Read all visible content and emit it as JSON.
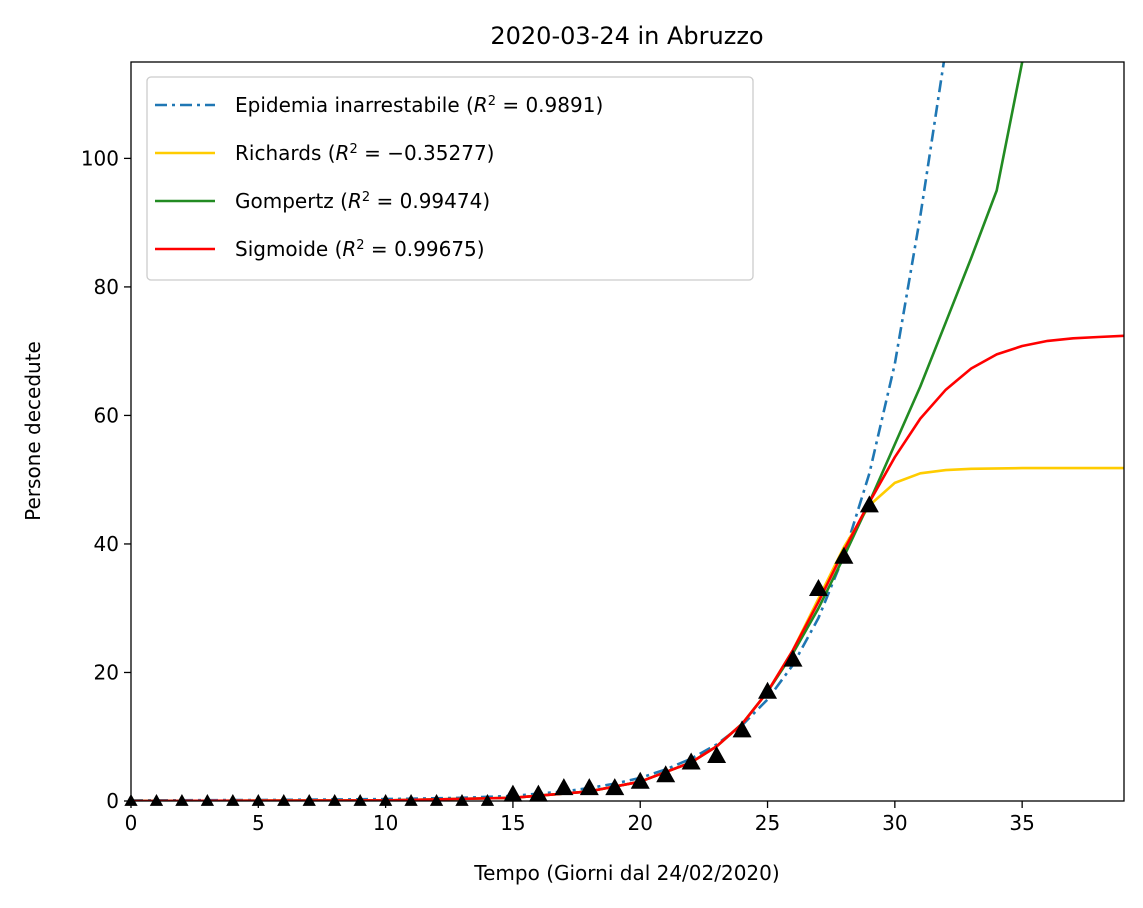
{
  "chart_data": {
    "type": "line",
    "title": "2020-03-24 in Abruzzo",
    "xlabel": "Tempo (Giorni dal 24/02/2020)",
    "ylabel": "Persone decedute",
    "xlim": [
      0,
      39
    ],
    "ylim": [
      0,
      115
    ],
    "xticks": [
      0,
      5,
      10,
      15,
      20,
      25,
      30,
      35
    ],
    "yticks": [
      0,
      20,
      40,
      60,
      80,
      100
    ],
    "grid": false,
    "legend_position": "top-left",
    "series": [
      {
        "name": "Epidemia inarrestabile (R² = 0.9891)",
        "legend_prefix": "Epidemia inarrestabile (",
        "legend_r2": "0.9891",
        "legend_suffix": ")",
        "color": "#1f77b4",
        "style": "dashdot",
        "x": [
          0,
          5,
          10,
          13,
          15,
          17,
          18,
          19,
          20,
          21,
          22,
          23,
          24,
          25,
          26,
          27,
          28,
          29,
          30,
          31,
          32
        ],
        "y": [
          0.1,
          0.15,
          0.3,
          0.5,
          0.8,
          1.5,
          2.0,
          2.7,
          3.6,
          4.9,
          6.6,
          8.8,
          11.8,
          15.8,
          21.2,
          28.5,
          38.2,
          51.0,
          68.0,
          91.0,
          117.0
        ]
      },
      {
        "name": "Richards (R² = −0.35277)",
        "legend_prefix": "Richards (",
        "legend_r2": "−0.35277",
        "legend_suffix": ")",
        "color": "#ffcc00",
        "style": "solid",
        "x": [
          0,
          10,
          15,
          18,
          20,
          22,
          23,
          24,
          25,
          26,
          27,
          28,
          29,
          30,
          31,
          32,
          33,
          35,
          39
        ],
        "y": [
          0,
          0.1,
          0.5,
          1.5,
          3.0,
          6.0,
          8.5,
          12.0,
          17.0,
          23.5,
          31.5,
          39.5,
          46.0,
          49.5,
          51.0,
          51.5,
          51.7,
          51.8,
          51.8
        ]
      },
      {
        "name": "Gompertz (R² = 0.99474)",
        "legend_prefix": "Gompertz (",
        "legend_r2": "0.99474",
        "legend_suffix": ")",
        "color": "#228b22",
        "style": "solid",
        "x": [
          0,
          10,
          15,
          18,
          20,
          22,
          23,
          24,
          25,
          26,
          27,
          28,
          29,
          30,
          31,
          32,
          33,
          34,
          35
        ],
        "y": [
          0,
          0.1,
          0.5,
          1.5,
          3.0,
          6.0,
          8.5,
          12.0,
          17.0,
          23.0,
          30.0,
          38.0,
          46.5,
          55.5,
          64.5,
          74.5,
          84.5,
          95.0,
          115.0
        ]
      },
      {
        "name": "Sigmoide (R² = 0.99675)",
        "legend_prefix": "Sigmoide (",
        "legend_r2": "0.99675",
        "legend_suffix": ")",
        "color": "#ff0000",
        "style": "solid",
        "x": [
          0,
          10,
          15,
          18,
          20,
          22,
          23,
          24,
          25,
          26,
          27,
          28,
          29,
          30,
          31,
          32,
          33,
          34,
          35,
          36,
          37,
          38,
          39
        ],
        "y": [
          0,
          0.1,
          0.5,
          1.5,
          3.0,
          6.0,
          8.5,
          12.0,
          17.0,
          23.5,
          31.0,
          39.0,
          46.5,
          53.5,
          59.5,
          64.0,
          67.3,
          69.5,
          70.8,
          71.6,
          72.0,
          72.2,
          72.4
        ]
      }
    ],
    "observed": {
      "marker": "triangle",
      "color": "#000000",
      "x": [
        0,
        1,
        2,
        3,
        4,
        5,
        6,
        7,
        8,
        9,
        10,
        11,
        12,
        13,
        14,
        15,
        16,
        17,
        18,
        19,
        20,
        21,
        22,
        23,
        24,
        25,
        26,
        27,
        28,
        29
      ],
      "y": [
        0,
        0,
        0,
        0,
        0,
        0,
        0,
        0,
        0,
        0,
        0,
        0,
        0,
        0,
        0,
        1,
        1,
        2,
        2,
        2,
        3,
        4,
        6,
        7,
        11,
        17,
        22,
        33,
        38,
        46
      ]
    }
  }
}
